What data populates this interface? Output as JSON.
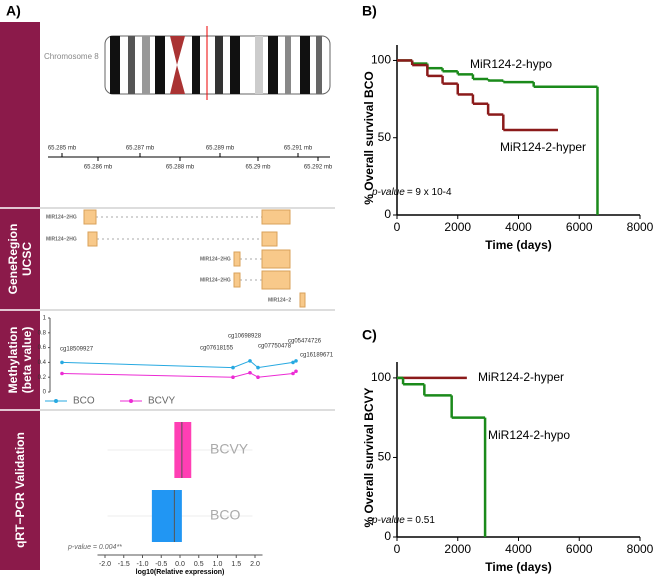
{
  "panel_a": {
    "label": "A)",
    "sections": [
      [
        "GeneRegion",
        "UCSC"
      ],
      [
        "Methylation",
        "(beta value)"
      ],
      [
        "qRT−PCR Validation"
      ]
    ],
    "chromosome": "Chromosome 8",
    "ruler_top": [
      "65.285 mb",
      "65.287 mb",
      "65.289 mb",
      "65.291 mb"
    ],
    "ruler_bottom": [
      "65.286 mb",
      "65.288 mb",
      "65.29 mb",
      "65.292 mb"
    ],
    "genes": [
      "MIR124−2HG",
      "MIR124−2HG",
      "MIR124−2HG",
      "MIR124−2HG",
      "MIR124−2"
    ]
  },
  "chart_data": [
    {
      "type": "line",
      "categories": [
        "cg18509927",
        "cg07618155",
        "cg10698928",
        "cg07750478",
        "cg05474726",
        "cg16189671"
      ],
      "series": [
        {
          "name": "BCO",
          "color": "#27a9e1",
          "values": [
            0.4,
            0.33,
            0.42,
            0.33,
            0.4,
            0.42
          ]
        },
        {
          "name": "BCVY",
          "color": "#ec2bd4",
          "values": [
            0.25,
            0.2,
            0.26,
            0.2,
            0.25,
            0.28
          ]
        }
      ],
      "ylim": [
        0,
        1
      ],
      "yticks": [
        0,
        0.2,
        0.4,
        0.6,
        0.8,
        1
      ]
    },
    {
      "type": "box",
      "xlabel": "log10(Relative expression)",
      "annotation": "p-value = 0.004**",
      "boxes": [
        {
          "name": "BCVY",
          "color": "#ff3fb4",
          "q1": -0.15,
          "median": 0.05,
          "q3": 0.3
        },
        {
          "name": "BCO",
          "color": "#2196f3",
          "q1": -0.75,
          "median": -0.15,
          "q3": 0.05
        }
      ],
      "xlim": [
        -2.2,
        2.2
      ],
      "xticks": [
        {
          "value": -2,
          "label": "-2.0"
        },
        {
          "value": -1.5,
          "label": "-1.5"
        },
        {
          "value": -1,
          "label": "-1.0"
        },
        {
          "value": -0.5,
          "label": "-0.5"
        },
        {
          "value": 0,
          "label": "0.0"
        },
        {
          "value": 0.5,
          "label": "0.5"
        },
        {
          "value": 1,
          "label": "1.0"
        },
        {
          "value": 1.5,
          "label": "1.5"
        },
        {
          "value": 2,
          "label": "2.0"
        }
      ]
    },
    {
      "type": "survival",
      "panel": "B)",
      "xlabel": "Time (days)",
      "ylabel": "% Overall survival BCO",
      "annotations": [
        "p-value",
        "= 9 x 10-4"
      ],
      "series": [
        {
          "name": "MiR124-2-hypo",
          "color": "#1a8a1a",
          "x": [
            0,
            500,
            1000,
            1500,
            2000,
            2500,
            3000,
            3500,
            4500,
            6600,
            6600
          ],
          "values": [
            100,
            98,
            95,
            93,
            91,
            88,
            87,
            86,
            83,
            83,
            0
          ]
        },
        {
          "name": "MiR124-2-hyper",
          "color": "#8b1a1a",
          "x": [
            0,
            500,
            1000,
            1500,
            2000,
            2500,
            3000,
            3500,
            5300
          ],
          "values": [
            100,
            97,
            90,
            85,
            78,
            72,
            65,
            55,
            55
          ]
        }
      ],
      "xlim": [
        0,
        8000
      ],
      "xticks": [
        0,
        2000,
        4000,
        6000,
        8000
      ],
      "ylim": [
        0,
        110
      ],
      "yticks": [
        0,
        50,
        100
      ]
    },
    {
      "type": "survival",
      "panel": "C)",
      "xlabel": "Time (days)",
      "ylabel": "% Overall survival BCVY",
      "annotations": [
        "p-value",
        "= 0.51"
      ],
      "series": [
        {
          "name": "MiR124-2-hyper",
          "color": "#8b1a1a",
          "x": [
            0,
            2300
          ],
          "values": [
            100,
            100
          ]
        },
        {
          "name": "MiR124-2-hypo",
          "color": "#1a8a1a",
          "x": [
            0,
            200,
            900,
            1800,
            2900,
            2900
          ],
          "values": [
            100,
            96,
            89,
            75,
            75,
            0
          ]
        }
      ],
      "xlim": [
        0,
        8000
      ],
      "xticks": [
        0,
        2000,
        4000,
        6000,
        8000
      ],
      "ylim": [
        0,
        110
      ],
      "yticks": [
        0,
        50,
        100
      ]
    }
  ]
}
